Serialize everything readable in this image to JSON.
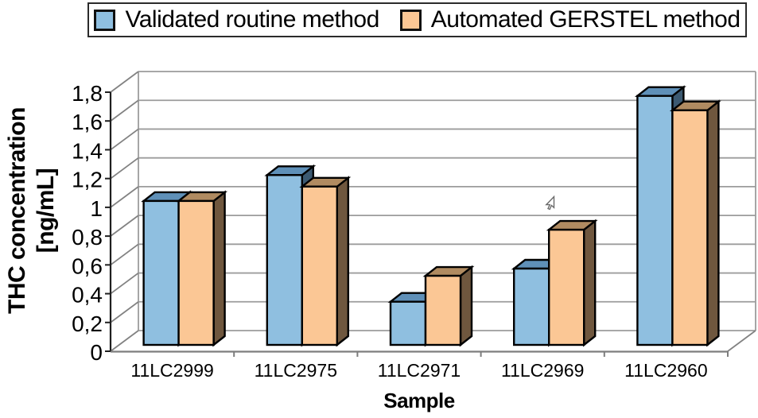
{
  "legend": {
    "items": [
      {
        "label": "Validated routine method",
        "color": "#8FBFE0"
      },
      {
        "label": "Automated GERSTEL method",
        "color": "#FBC795"
      }
    ]
  },
  "chart_data": {
    "type": "bar",
    "style": "3d-clustered-bars",
    "title": "",
    "categories": [
      "11LC2999",
      "11LC2975",
      "11LC2971",
      "11LC2969",
      "11LC2960"
    ],
    "series": [
      {
        "name": "Validated routine method",
        "values": [
          1.0,
          1.18,
          0.3,
          0.53,
          1.73
        ],
        "colors": {
          "front": "#8FBFE0",
          "top": "#5F90B8",
          "side": "#3C5A72"
        }
      },
      {
        "name": "Automated GERSTEL method",
        "values": [
          1.0,
          1.1,
          0.48,
          0.8,
          1.63
        ],
        "colors": {
          "front": "#FBC795",
          "top": "#B08B61",
          "side": "#6F573E"
        }
      }
    ],
    "xlabel": "Sample",
    "ylabel": "THC concentration [ng/mL]",
    "ylabel_lines": [
      "THC concentration",
      "[ng/mL]"
    ],
    "ylim": [
      0,
      1.8
    ],
    "ytick_step": 0.2,
    "ytick_labels": [
      "0",
      "0,2",
      "0,4",
      "0,6",
      "0,8",
      "1",
      "1,2",
      "1,4",
      "1,6",
      "1,8"
    ],
    "grid": true,
    "legend_position": "top",
    "decimal_separator": ","
  }
}
